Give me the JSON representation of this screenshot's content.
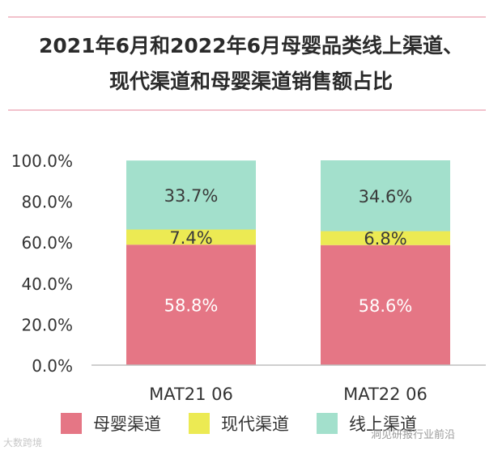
{
  "title": {
    "line1": "2021年6月和2022年6月母婴品类线上渠道、",
    "line2": "现代渠道和母婴渠道销售额占比"
  },
  "chart_data": {
    "type": "bar",
    "stacked": true,
    "categories": [
      "MAT21 06",
      "MAT22 06"
    ],
    "series": [
      {
        "name": "母婴渠道",
        "values": [
          58.8,
          58.6
        ],
        "labels": [
          "58.8%",
          "58.6%"
        ],
        "color": "#e57685"
      },
      {
        "name": "现代渠道",
        "values": [
          7.4,
          6.8
        ],
        "labels": [
          "7.4%",
          "6.8%"
        ],
        "color": "#ecea53"
      },
      {
        "name": "线上渠道",
        "values": [
          33.7,
          34.6
        ],
        "labels": [
          "33.7%",
          "34.6%"
        ],
        "color": "#a3e0cc"
      }
    ],
    "yticks": [
      "0.0%",
      "20.0%",
      "40.0%",
      "60.0%",
      "80.0%",
      "100.0%"
    ],
    "ylim": [
      0,
      100
    ],
    "grid": false,
    "legend_position": "bottom"
  },
  "watermark": {
    "left": "大数跨境",
    "right": "洞见研报行业前沿"
  }
}
